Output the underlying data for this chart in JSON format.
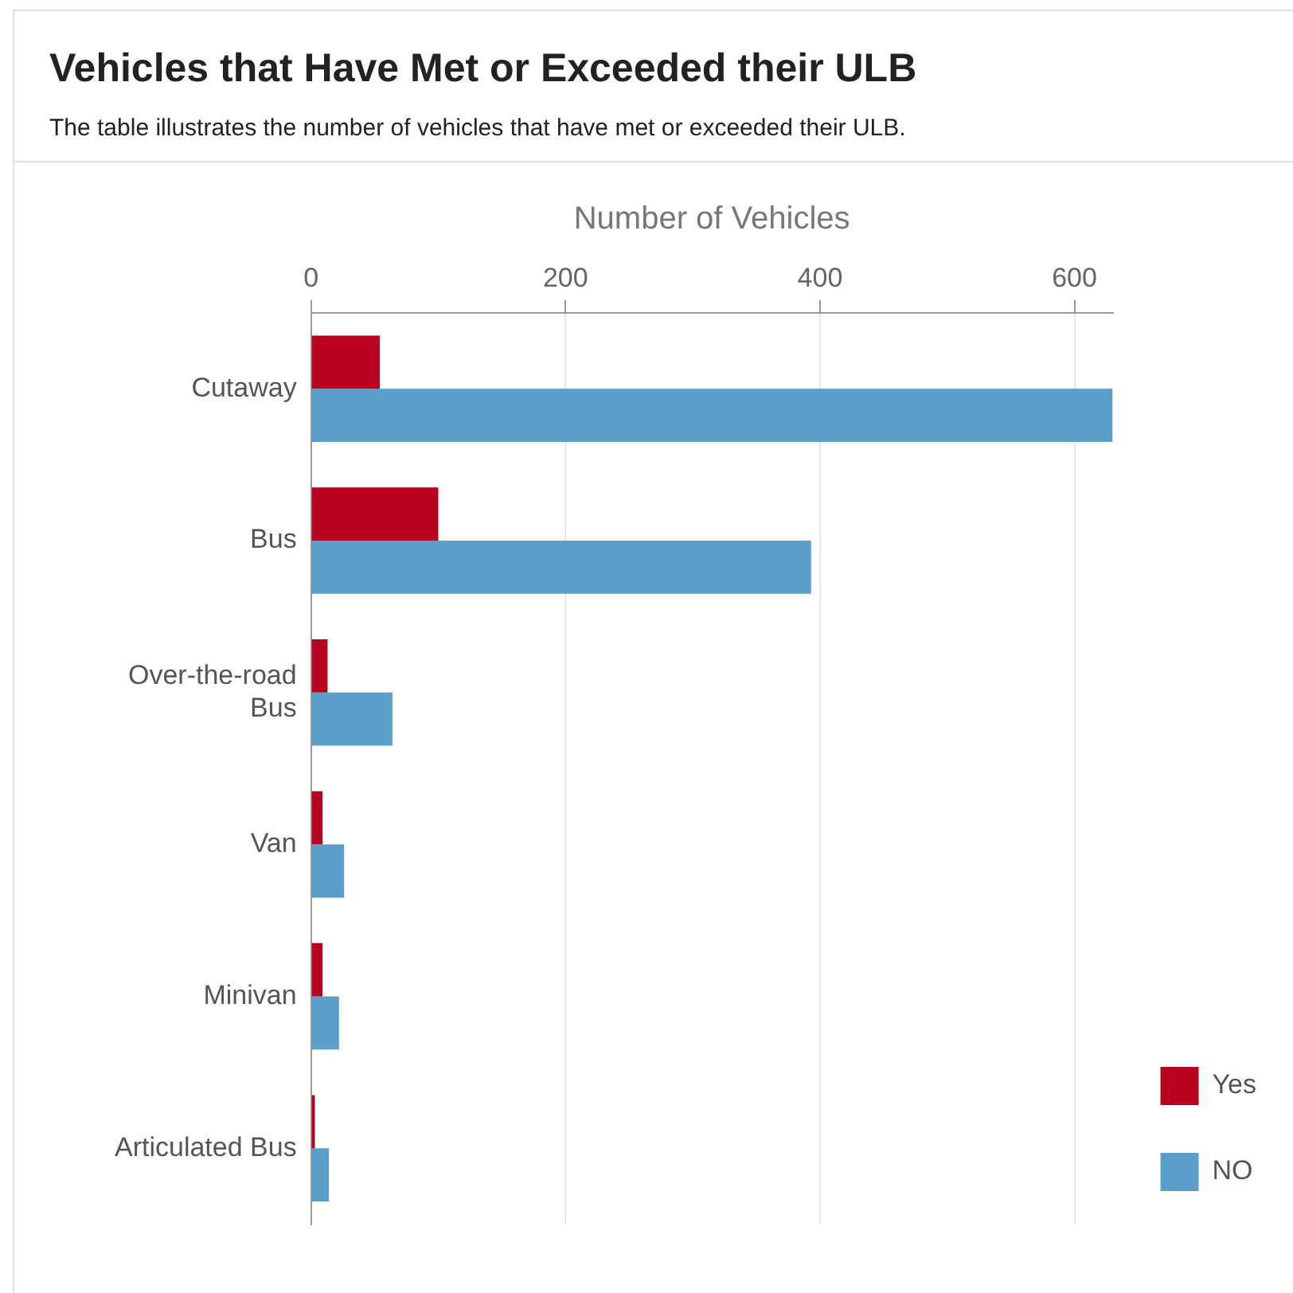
{
  "chart_data": {
    "type": "bar",
    "orientation": "horizontal",
    "title": "Vehicles that Have Met or Exceeded their ULB",
    "subtitle": "The table illustrates the number of vehicles that have met or exceeded their ULB.",
    "xlabel": "Number of Vehicles",
    "categories": [
      "Cutaway",
      "Bus",
      "Over-the-road Bus",
      "Van",
      "Minivan",
      "Articulated Bus"
    ],
    "series": [
      {
        "name": "Yes",
        "color": "#b8001f",
        "values": [
          54,
          100,
          13,
          9,
          9,
          3
        ]
      },
      {
        "name": "NO",
        "color": "#5b9ec9",
        "values": [
          630,
          393,
          64,
          26,
          22,
          14
        ]
      }
    ],
    "xlim": [
      0,
      630
    ],
    "xticks": [
      0,
      200,
      400,
      600
    ],
    "grid": "x",
    "legend": "bottom right"
  }
}
